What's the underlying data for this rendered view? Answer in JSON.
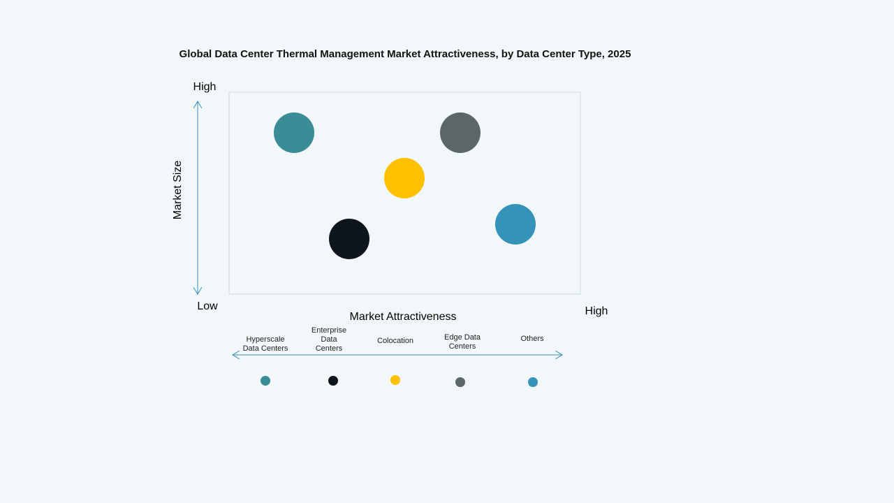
{
  "title": "Global Data Center Thermal Management Market Attractiveness,  by Data Center Type, 2025",
  "y_axis": {
    "label": "Market Size",
    "high": "High",
    "low": "Low"
  },
  "x_axis": {
    "label": "Market Attractiveness",
    "high": "High"
  },
  "segments": [
    {
      "name": "Hyperscale Data Centers",
      "color": "#3a8d96"
    },
    {
      "name": "Enterprise Data Centers",
      "color": "#0f151c"
    },
    {
      "name": "Colocation",
      "color": "#ffc000"
    },
    {
      "name": "Edge Data Centers",
      "color": "#5b6766"
    },
    {
      "name": "Others",
      "color": "#3592b8"
    }
  ]
}
